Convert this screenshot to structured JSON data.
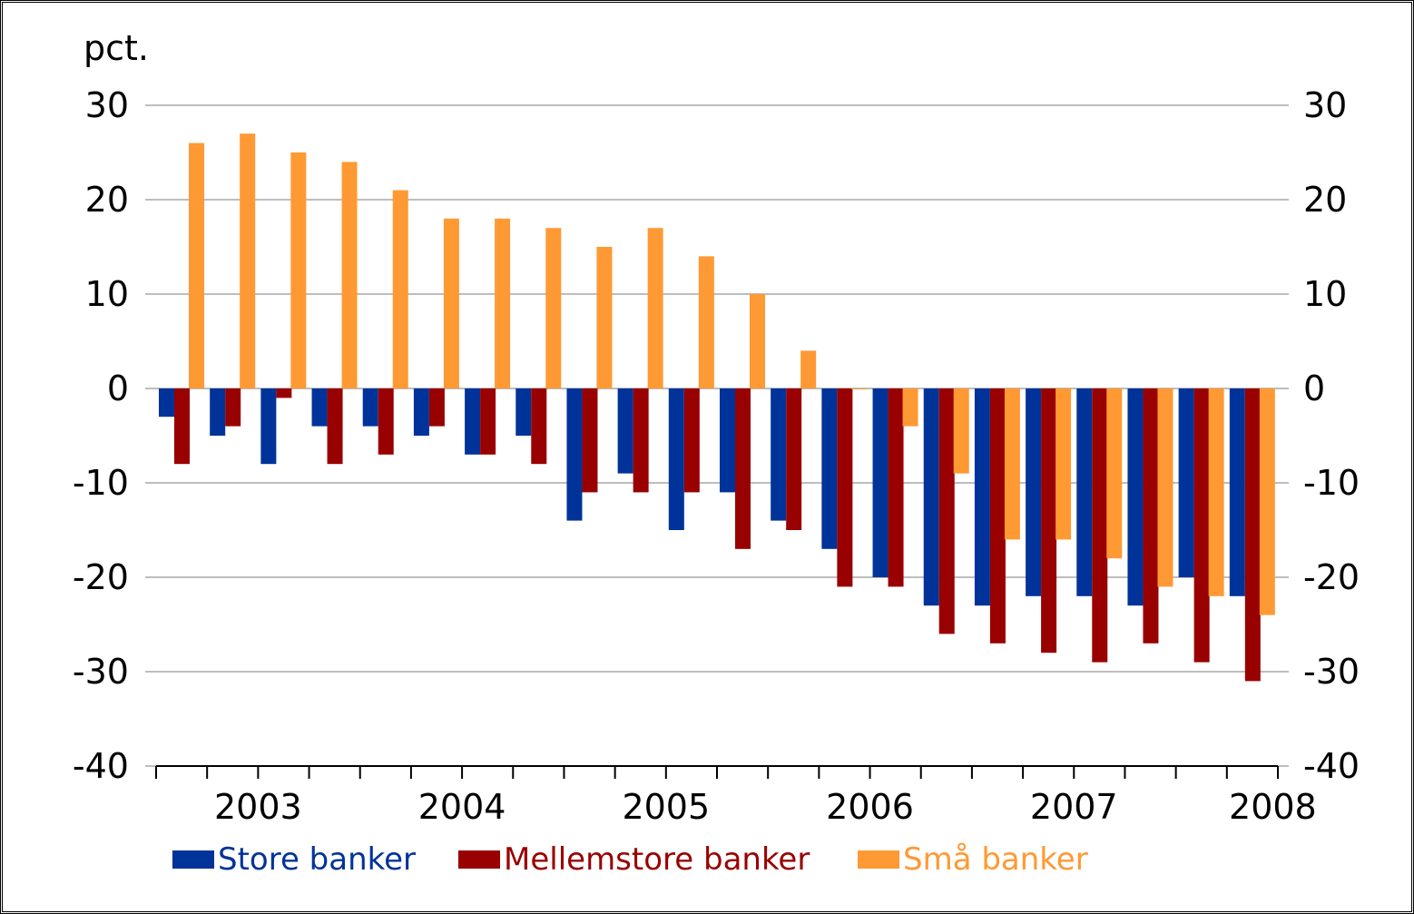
{
  "chart_data": {
    "type": "bar",
    "unit_label": "pct.",
    "ylim": [
      -40,
      30
    ],
    "yticks": [
      -40,
      -30,
      -20,
      -10,
      0,
      10,
      20,
      30
    ],
    "secondary_yticks": [
      -40,
      -30,
      -20,
      -10,
      0,
      10,
      20,
      30
    ],
    "x_year_labels": [
      "2003",
      "2004",
      "2005",
      "2006",
      "2007",
      "2008"
    ],
    "grid": true,
    "legend_position": "bottom",
    "series": [
      {
        "name": "Store banker",
        "color": "#003399",
        "values": [
          -3,
          -5,
          -8,
          -4,
          -4,
          -5,
          -7,
          -5,
          -14,
          -9,
          -15,
          -11,
          -14,
          -17,
          -20,
          -23,
          -23,
          -22,
          -22,
          -23,
          -20,
          -22
        ]
      },
      {
        "name": "Mellemstore banker",
        "color": "#990000",
        "values": [
          -8,
          -4,
          -1,
          -8,
          -7,
          -4,
          -7,
          -8,
          -11,
          -11,
          -11,
          -17,
          -15,
          -21,
          -21,
          -26,
          -27,
          -28,
          -29,
          -27,
          -29,
          -31
        ]
      },
      {
        "name": "Små banker",
        "color": "#FF9933",
        "values": [
          26,
          27,
          25,
          24,
          21,
          18,
          18,
          17,
          15,
          17,
          14,
          10,
          4,
          0,
          -4,
          -9,
          -16,
          -16,
          -18,
          -21,
          -22,
          -24
        ]
      }
    ]
  }
}
